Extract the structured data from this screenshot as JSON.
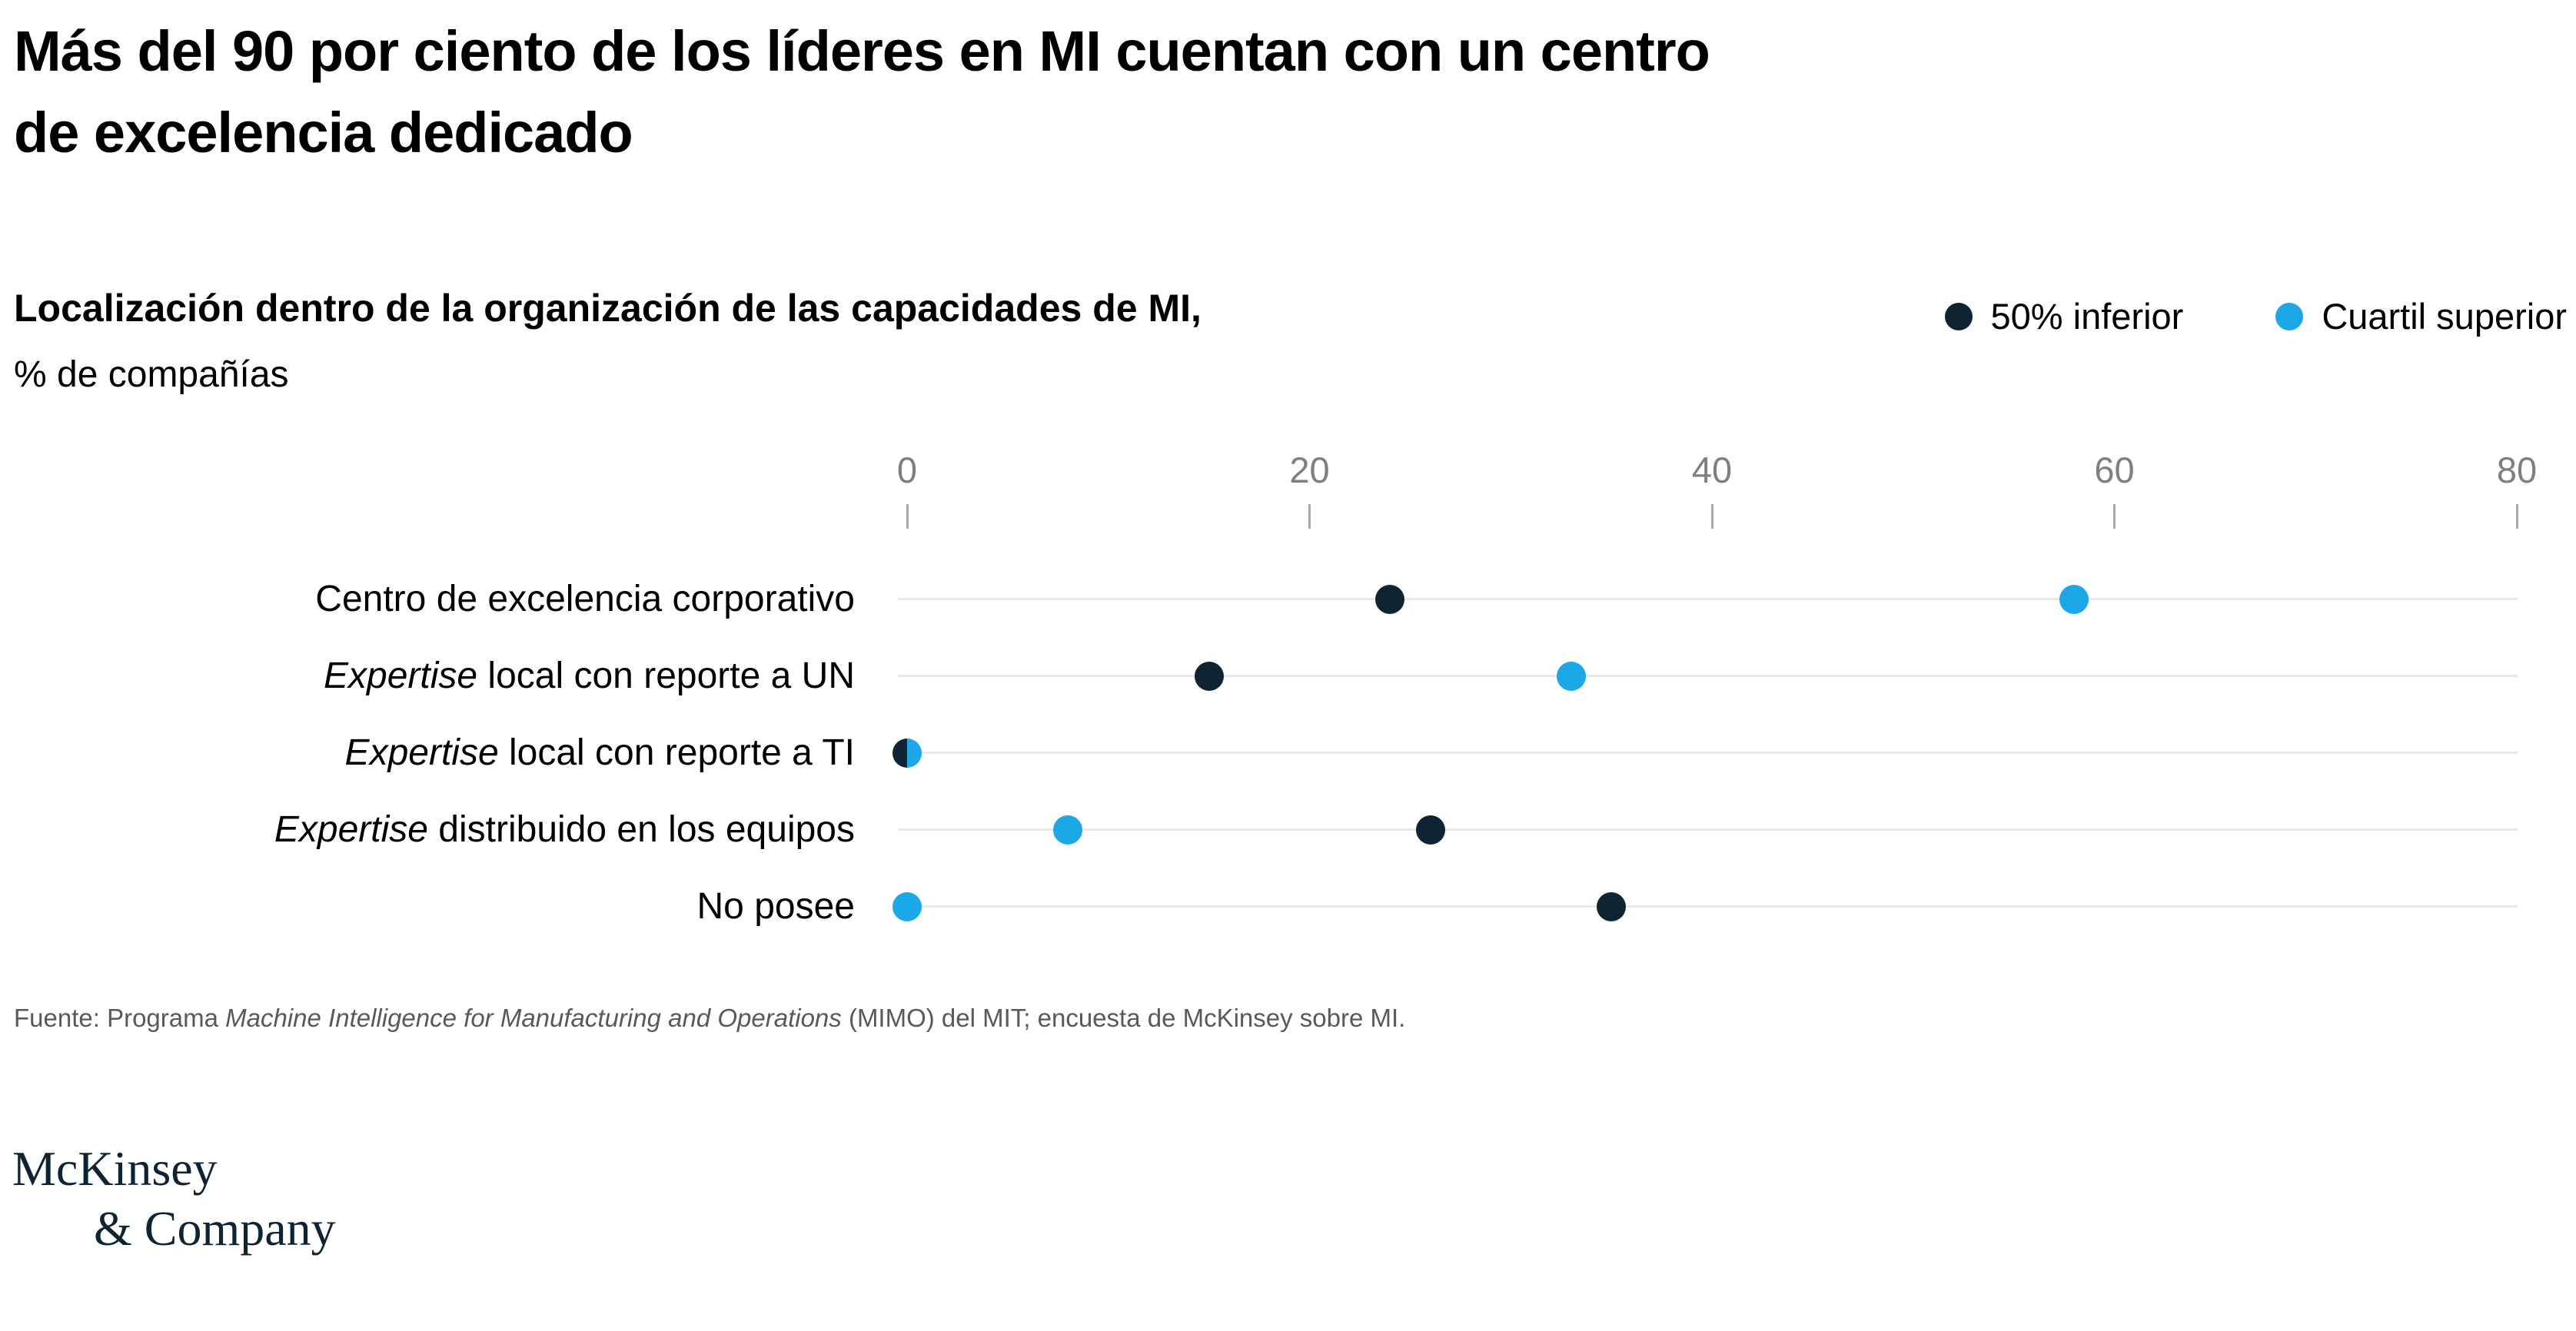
{
  "title": {
    "line1": "Más del 90 por ciento de los líderes en MI cuentan con un centro",
    "line2": "de excelencia dedicado"
  },
  "subtitle": {
    "bold": "Localización dentro de la organización de las capacidades de MI,",
    "unit": "% de compañías"
  },
  "chart_data": {
    "type": "scatter",
    "variant": "horizontal-dot-plot",
    "title": "Localización dentro de la organización de las capacidades de MI, % de compañías",
    "x_axis": {
      "min": 0,
      "max": 80,
      "ticks": [
        0,
        20,
        40,
        60,
        80
      ]
    },
    "grid": "light-gray category lines spanning full axis width",
    "legend_position": "top-right",
    "categories": [
      {
        "italic_prefix": "",
        "text": "Centro de excelencia corporativo"
      },
      {
        "italic_prefix": "Expertise",
        "text": " local con reporte a UN"
      },
      {
        "italic_prefix": "Expertise",
        "text": " local con reporte a TI"
      },
      {
        "italic_prefix": "Expertise",
        "text": " distribuido en los equipos"
      },
      {
        "italic_prefix": "",
        "text": "No posee"
      }
    ],
    "series": [
      {
        "name": "50% inferior",
        "color": "#0e2433",
        "values": [
          24,
          15,
          0,
          26,
          35
        ]
      },
      {
        "name": "Cuartil superior",
        "color": "#1ca7e8",
        "values": [
          58,
          33,
          0,
          8,
          0
        ]
      }
    ],
    "overlap_note": "Row 'Expertise local con reporte a TI': both series at 0, drawn as half-navy/half-blue dot"
  },
  "source": {
    "prefix": "Fuente: Programa ",
    "italic": "Machine Intelligence for Manufacturing and Operations",
    "suffix": " (MIMO) del MIT; encuesta de McKinsey sobre MI."
  },
  "logo": {
    "line1": "McKinsey",
    "line2": "& Company"
  },
  "colors": {
    "navy": "#0e2433",
    "blue": "#1ca7e8",
    "grid_line": "#e8e8e8",
    "tick_text": "#7f7f7f",
    "source_text": "#595959",
    "background": "#ffffff"
  }
}
